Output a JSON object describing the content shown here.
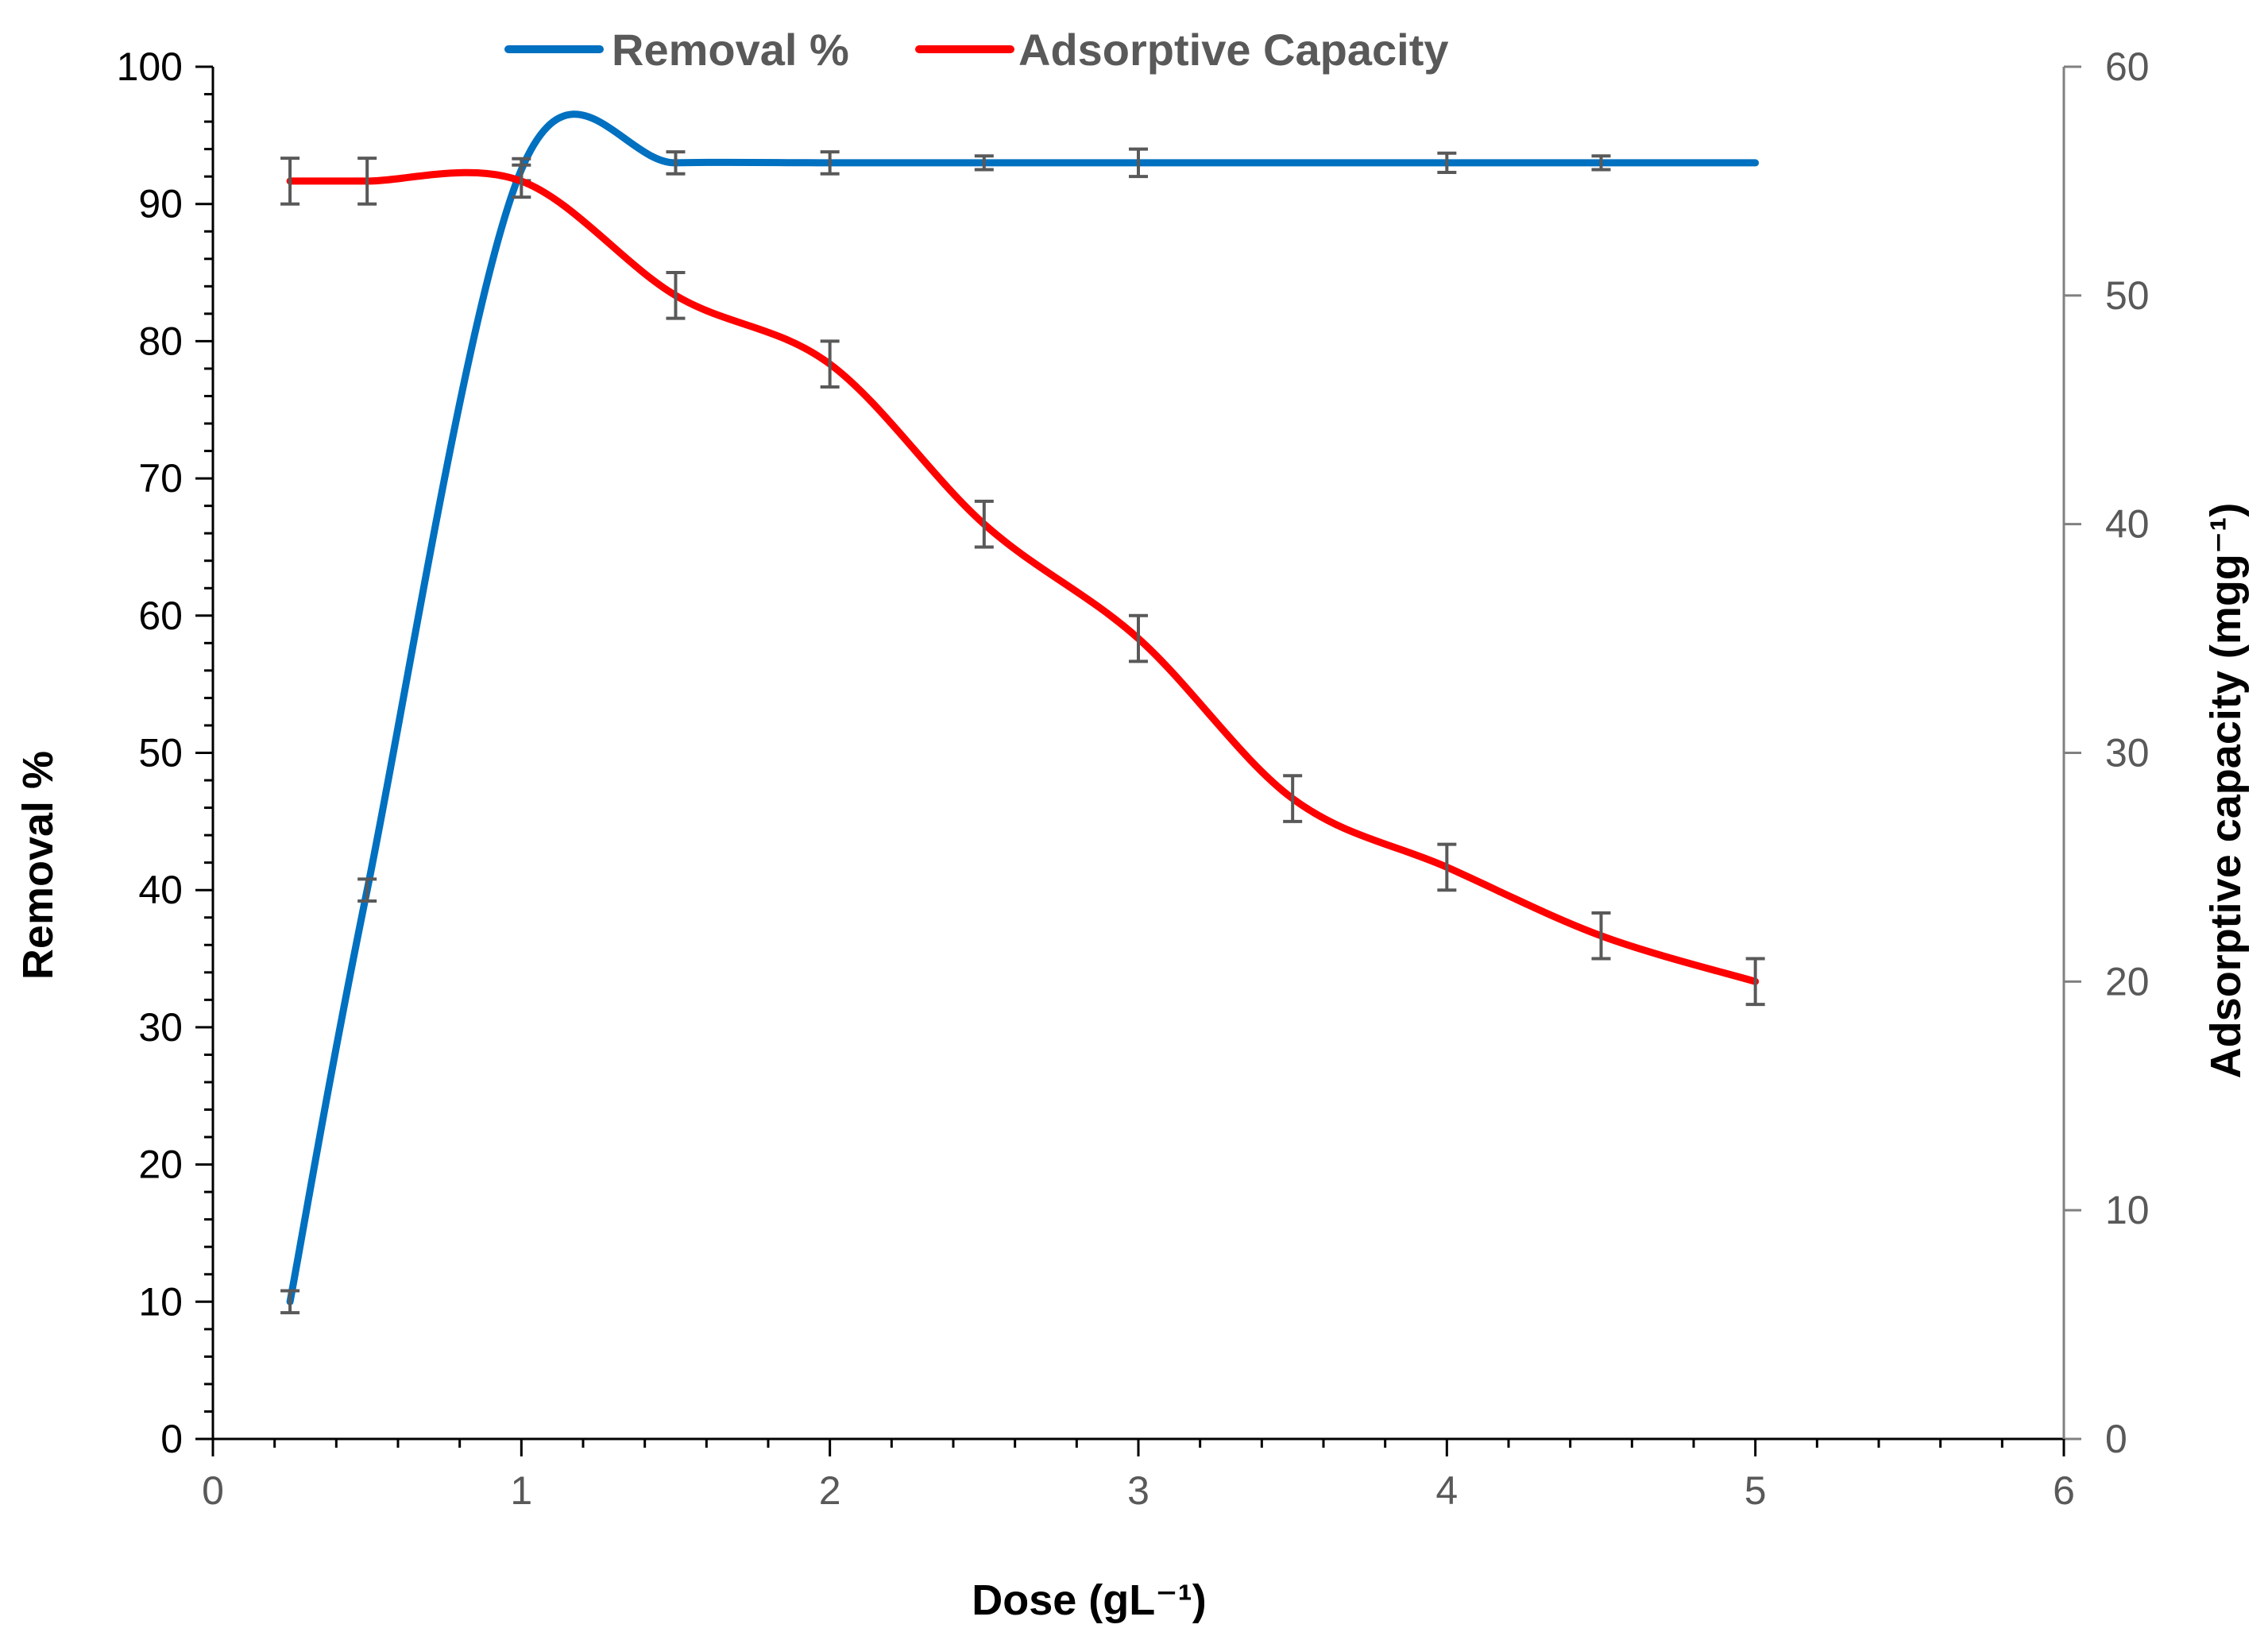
{
  "chart_data": {
    "type": "line",
    "title": "",
    "xlabel": "Dose (gL⁻¹)",
    "ylabel": "Removal %",
    "y2label": "Adsorptive capacity (mgg⁻¹)",
    "xlim": [
      0,
      6
    ],
    "ylim": [
      0,
      100
    ],
    "y2lim": [
      0,
      60
    ],
    "x_ticks": [
      "0",
      "1",
      "2",
      "3",
      "4",
      "5",
      "6"
    ],
    "y_ticks": [
      "0",
      "10",
      "20",
      "30",
      "40",
      "50",
      "60",
      "70",
      "80",
      "90",
      "100"
    ],
    "y2_ticks": [
      "0",
      "10",
      "20",
      "30",
      "40",
      "50",
      "60"
    ],
    "grid": false,
    "legend_position": "top-center",
    "series": [
      {
        "name": "Removal %",
        "axis": "left",
        "color": "#0070C0",
        "x": [
          0.25,
          0.5,
          1,
          1.5,
          2,
          2.5,
          3,
          4,
          4.5,
          5
        ],
        "values": [
          10,
          40,
          92.5,
          93,
          93,
          93,
          93,
          93,
          93,
          93
        ],
        "errors": [
          0.8,
          0.8,
          0.8,
          0.8,
          0.8,
          0.5,
          1.0,
          0.7,
          0.5,
          0
        ]
      },
      {
        "name": "Adsorptive Capacity",
        "axis": "right",
        "color": "#FF0000",
        "x": [
          0.25,
          0.5,
          1,
          1.5,
          2,
          2.5,
          3,
          3.5,
          4,
          4.5,
          5
        ],
        "values": [
          55,
          55,
          55,
          50,
          47,
          40,
          35,
          28,
          25,
          22,
          20
        ],
        "errors": [
          1.0,
          1.0,
          0.7,
          1.0,
          1.0,
          1.0,
          1.0,
          1.0,
          1.0,
          1.0,
          1.0
        ]
      }
    ]
  },
  "colors": {
    "axis": "#000000",
    "right_axis": "#808080",
    "error_bar": "#595959",
    "right_tick_text": "#595959"
  }
}
